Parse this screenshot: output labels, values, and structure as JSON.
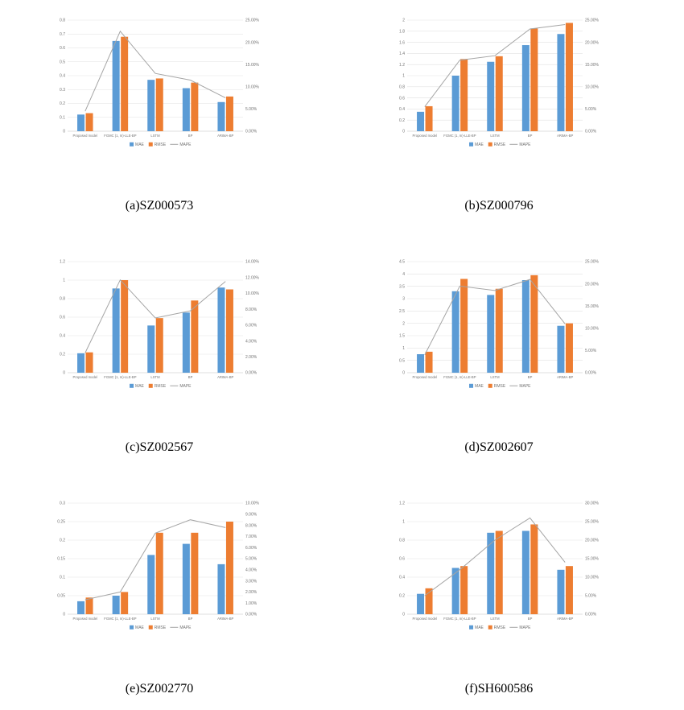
{
  "colors": {
    "mae": "#5b9bd5",
    "rmse": "#ed7d31",
    "mape_line": "#a5a5a5",
    "grid": "#e2e2e2",
    "axis_line": "#bfbfbf",
    "axis_text": "#737373"
  },
  "chart_data": [
    {
      "caption": "(a)SZ000573",
      "type": "bar",
      "legend_position": "bottom",
      "grid": true,
      "categories": [
        "Proposed model",
        "FGMC (1, m)-LLE-BP",
        "LSTM",
        "BP",
        "ARIMA-BP"
      ],
      "series": [
        {
          "name": "MAE",
          "type": "bar",
          "axis": "left",
          "values": [
            0.12,
            0.65,
            0.37,
            0.31,
            0.21
          ]
        },
        {
          "name": "RMSE",
          "type": "bar",
          "axis": "left",
          "values": [
            0.13,
            0.68,
            0.38,
            0.35,
            0.25
          ]
        },
        {
          "name": "MAPE",
          "type": "line",
          "axis": "right",
          "values": [
            4.5,
            22.5,
            13.0,
            11.5,
            7.5
          ]
        }
      ],
      "left_axis": {
        "min": 0,
        "max": 0.8,
        "step": 0.1
      },
      "right_axis": {
        "min": 0,
        "max": 25,
        "step": 5,
        "format": "percent"
      }
    },
    {
      "caption": "(b)SZ000796",
      "type": "bar",
      "legend_position": "bottom",
      "grid": true,
      "categories": [
        "Proposed model",
        "FGMC (1, m)-LLE-BP",
        "LSTM",
        "BP",
        "ARIMA-BP"
      ],
      "series": [
        {
          "name": "MAE",
          "type": "bar",
          "axis": "left",
          "values": [
            0.35,
            1.0,
            1.25,
            1.55,
            1.75
          ]
        },
        {
          "name": "RMSE",
          "type": "bar",
          "axis": "left",
          "values": [
            0.45,
            1.3,
            1.35,
            1.85,
            1.95
          ]
        },
        {
          "name": "MAPE",
          "type": "line",
          "axis": "right",
          "values": [
            5.5,
            16.0,
            17.0,
            23.0,
            24.0
          ]
        }
      ],
      "left_axis": {
        "min": 0,
        "max": 2,
        "step": 0.2
      },
      "right_axis": {
        "min": 0,
        "max": 25,
        "step": 5,
        "format": "percent"
      }
    },
    {
      "caption": "(c)SZ002567",
      "type": "bar",
      "legend_position": "bottom",
      "grid": true,
      "categories": [
        "Proposed model",
        "FGMC (1, m)-LLE-BP",
        "LSTM",
        "BP",
        "ARIMA-BP"
      ],
      "series": [
        {
          "name": "MAE",
          "type": "bar",
          "axis": "left",
          "values": [
            0.21,
            0.91,
            0.51,
            0.65,
            0.92
          ]
        },
        {
          "name": "RMSE",
          "type": "bar",
          "axis": "left",
          "values": [
            0.22,
            1.0,
            0.59,
            0.78,
            0.9
          ]
        },
        {
          "name": "MAPE",
          "type": "line",
          "axis": "right",
          "values": [
            2.5,
            11.7,
            6.9,
            7.8,
            11.5
          ]
        }
      ],
      "left_axis": {
        "min": 0,
        "max": 1.2,
        "step": 0.2
      },
      "right_axis": {
        "min": 0,
        "max": 14,
        "step": 2,
        "format": "percent"
      }
    },
    {
      "caption": "(d)SZ002607",
      "type": "bar",
      "legend_position": "bottom",
      "grid": true,
      "categories": [
        "Proposed model",
        "FGMC (1, m)-LLE-BP",
        "LSTM",
        "BP",
        "ARIMA-BP"
      ],
      "series": [
        {
          "name": "MAE",
          "type": "bar",
          "axis": "left",
          "values": [
            0.75,
            3.3,
            3.15,
            3.75,
            1.9
          ]
        },
        {
          "name": "RMSE",
          "type": "bar",
          "axis": "left",
          "values": [
            0.85,
            3.8,
            3.4,
            3.95,
            2.0
          ]
        },
        {
          "name": "MAPE",
          "type": "line",
          "axis": "right",
          "values": [
            4.0,
            19.5,
            18.5,
            21.0,
            11.0
          ]
        }
      ],
      "left_axis": {
        "min": 0,
        "max": 4.5,
        "step": 0.5
      },
      "right_axis": {
        "min": 0,
        "max": 25,
        "step": 5,
        "format": "percent"
      }
    },
    {
      "caption": "(e)SZ002770",
      "type": "bar",
      "legend_position": "bottom",
      "grid": true,
      "categories": [
        "Proposed model",
        "FGMC (1, m)-LLE-BP",
        "LSTM",
        "BP",
        "ARIMA-BP"
      ],
      "series": [
        {
          "name": "MAE",
          "type": "bar",
          "axis": "left",
          "values": [
            0.035,
            0.05,
            0.16,
            0.19,
            0.135
          ]
        },
        {
          "name": "RMSE",
          "type": "bar",
          "axis": "left",
          "values": [
            0.045,
            0.06,
            0.22,
            0.22,
            0.25
          ]
        },
        {
          "name": "MAPE",
          "type": "line",
          "axis": "right",
          "values": [
            1.3,
            2.0,
            7.3,
            8.5,
            7.8
          ]
        }
      ],
      "left_axis": {
        "min": 0,
        "max": 0.3,
        "step": 0.05
      },
      "right_axis": {
        "min": 0,
        "max": 10,
        "step": 1,
        "format": "percent"
      }
    },
    {
      "caption": "(f)SH600586",
      "type": "bar",
      "legend_position": "bottom",
      "grid": true,
      "categories": [
        "Proposed model",
        "FGMC (1, m)-LLE-BP",
        "LSTM",
        "BP",
        "ARIMA-BP"
      ],
      "series": [
        {
          "name": "MAE",
          "type": "bar",
          "axis": "left",
          "values": [
            0.22,
            0.5,
            0.88,
            0.9,
            0.48
          ]
        },
        {
          "name": "RMSE",
          "type": "bar",
          "axis": "left",
          "values": [
            0.28,
            0.52,
            0.9,
            0.97,
            0.52
          ]
        },
        {
          "name": "MAPE",
          "type": "line",
          "axis": "right",
          "values": [
            5.0,
            12.0,
            20.0,
            26.0,
            14.0
          ]
        }
      ],
      "left_axis": {
        "min": 0,
        "max": 1.2,
        "step": 0.2
      },
      "right_axis": {
        "min": 0,
        "max": 30,
        "step": 5,
        "format": "percent"
      }
    }
  ]
}
